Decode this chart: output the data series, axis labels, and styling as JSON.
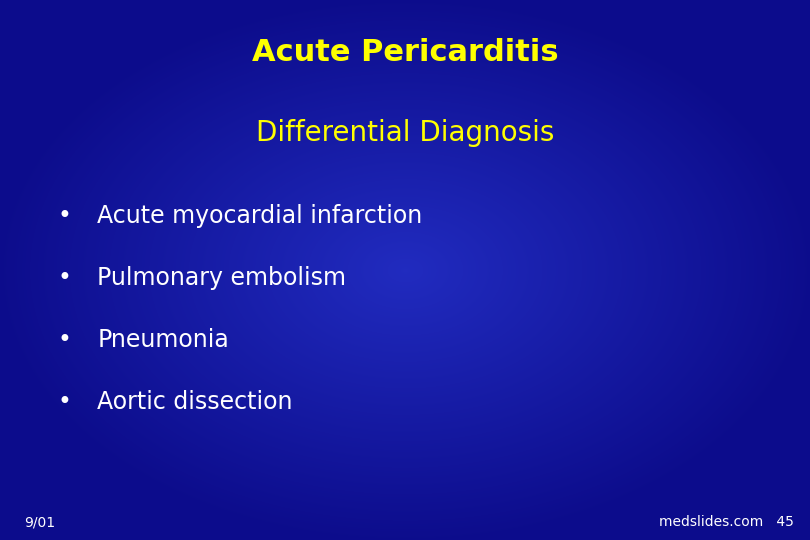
{
  "title_line1": "Acute Pericarditis",
  "title_line2": "Differential Diagnosis",
  "title_color": "#FFFF00",
  "subtitle_color": "#FFFF00",
  "bullet_items": [
    "Acute myocardial infarction",
    "Pulmonary embolism",
    "Pneumonia",
    "Aortic dissection"
  ],
  "bullet_color": "#FFFFFF",
  "bullet_symbol": "•",
  "background_color_center": "#1a3aaa",
  "background_color_edge": "#00008B",
  "footer_left": "9/01",
  "footer_right": "medslides.com   45",
  "footer_color": "#FFFFFF",
  "title_fontsize": 22,
  "subtitle_fontsize": 20,
  "bullet_fontsize": 17,
  "footer_fontsize": 10
}
